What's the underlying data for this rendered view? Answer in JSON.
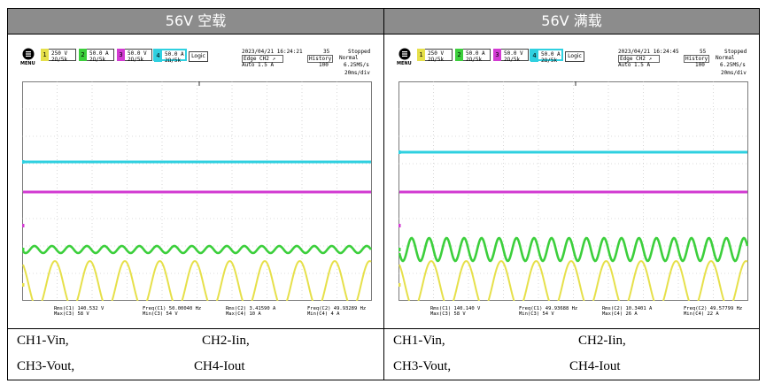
{
  "panels": [
    {
      "header": "56V 空载",
      "scope": {
        "menu_label": "MENU",
        "ch1": {
          "num": "1",
          "val": "250 V",
          "sub": "2Ω/5k"
        },
        "ch2": {
          "num": "2",
          "val": "50.0 A",
          "sub": "2Ω/5k"
        },
        "ch3": {
          "num": "3",
          "val": "50.0 V",
          "sub": "2Ω/5k"
        },
        "ch4": {
          "num": "4",
          "val": "50.0 A",
          "sub": "2Ω/5k"
        },
        "logic": "Logic",
        "datetime": "2023/04/21 16:24:21",
        "trigger": "Edge CH2 ↗",
        "auto": "Auto 1.5 A",
        "count": "35",
        "status": "Stopped",
        "history": "History",
        "normal": "Normal",
        "hist_num": "100",
        "rate": "6.25MS/s",
        "timebase": "20ms/div",
        "meas": [
          {
            "l1": "Rms(C1)  140.532 V",
            "l2": "Max(C3)  58 V"
          },
          {
            "l1": "Freq(C1)  50.00040 Hz",
            "l2": "Min(C3)  54 V"
          },
          {
            "l1": "Rms(C2)  3.41590 A",
            "l2": "Max(C4)  10 A"
          },
          {
            "l1": "Freq(C2)  49.93289 Hz",
            "l2": "Min(C4)  4 A"
          }
        ]
      },
      "captions": {
        "ch1": "CH1-Vin,",
        "ch2": "CH2-Iin,",
        "ch3": "CH3-Vout,",
        "ch4": "CH4-Iout"
      }
    },
    {
      "header": "56V 满载",
      "scope": {
        "menu_label": "MENU",
        "ch1": {
          "num": "1",
          "val": "250 V",
          "sub": "2Ω/5k"
        },
        "ch2": {
          "num": "2",
          "val": "50.0 A",
          "sub": "2Ω/5k"
        },
        "ch3": {
          "num": "3",
          "val": "50.0 V",
          "sub": "2Ω/5k"
        },
        "ch4": {
          "num": "4",
          "val": "50.0 A",
          "sub": "2Ω/5k"
        },
        "logic": "Logic",
        "datetime": "2023/04/21 16:24:45",
        "trigger": "Edge CH2 ↗",
        "auto": "Auto 1.5 A",
        "count": "55",
        "status": "Stopped",
        "history": "History",
        "normal": "Normal",
        "hist_num": "100",
        "rate": "6.25MS/s",
        "timebase": "20ms/div",
        "meas": [
          {
            "l1": "Rms(C1)  140.140 V",
            "l2": "Max(C3)  58 V"
          },
          {
            "l1": "Freq(C1)  49.93688 Hz",
            "l2": "Min(C3)  54 V"
          },
          {
            "l1": "Rms(C2)  10.3401 A",
            "l2": "Max(C4)  26 A"
          },
          {
            "l1": "Freq(C2)  49.57799 Hz",
            "l2": "Min(C4)  22 A"
          }
        ]
      },
      "captions": {
        "ch1": "CH1-Vin,",
        "ch2": "CH2-Iin,",
        "ch3": "CH3-Vout,",
        "ch4": "CH4-Iout"
      }
    }
  ],
  "colors": {
    "ch1": "#e6e04a",
    "ch2": "#3ccf3c",
    "ch3": "#d23ad2",
    "ch4": "#2fd0e0",
    "header_bg": "#8c8c8c"
  }
}
